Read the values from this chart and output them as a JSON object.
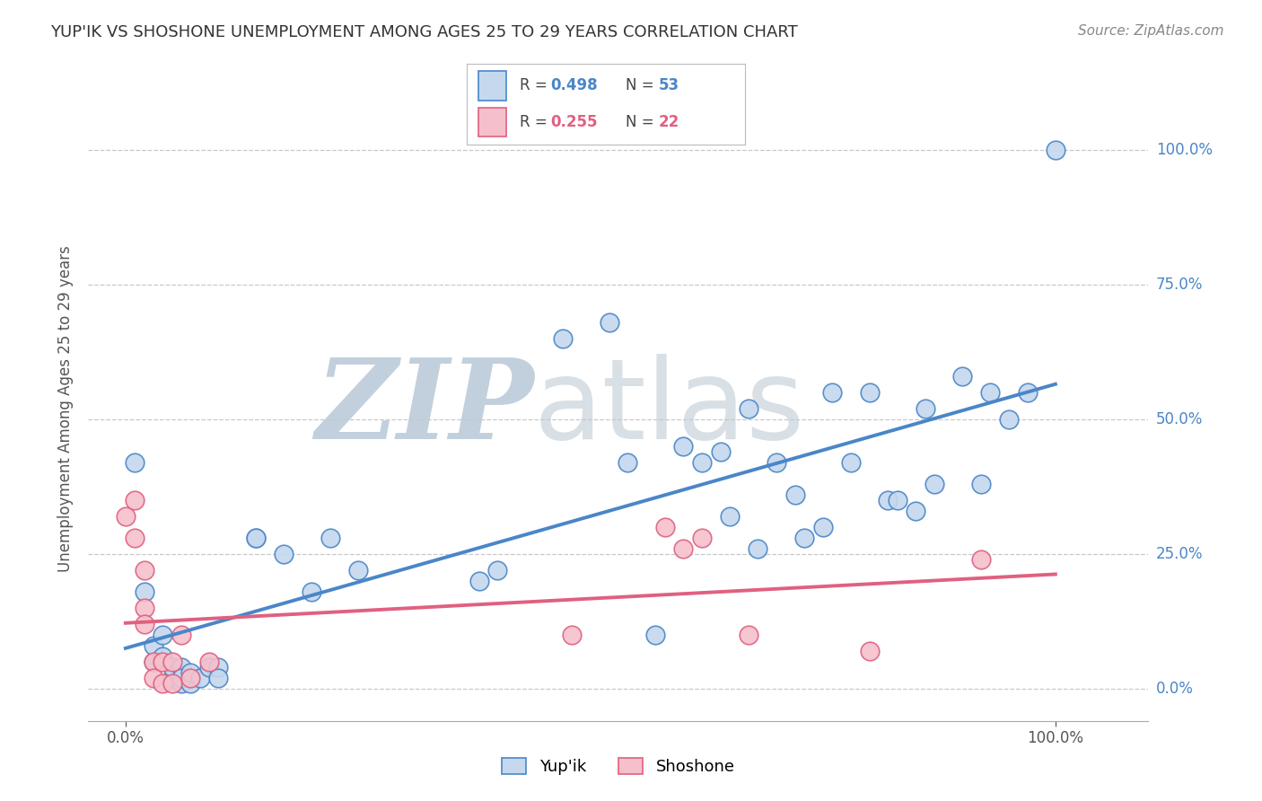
{
  "title": "YUP'IK VS SHOSHONE UNEMPLOYMENT AMONG AGES 25 TO 29 YEARS CORRELATION CHART",
  "source": "Source: ZipAtlas.com",
  "ylabel": "Unemployment Among Ages 25 to 29 years",
  "watermark_zip": "ZIP",
  "watermark_atlas": "atlas",
  "yupik_scatter": [
    [
      0.01,
      0.42
    ],
    [
      0.02,
      0.18
    ],
    [
      0.03,
      0.05
    ],
    [
      0.03,
      0.08
    ],
    [
      0.04,
      0.1
    ],
    [
      0.04,
      0.06
    ],
    [
      0.05,
      0.02
    ],
    [
      0.05,
      0.04
    ],
    [
      0.06,
      0.01
    ],
    [
      0.06,
      0.04
    ],
    [
      0.06,
      0.02
    ],
    [
      0.07,
      0.01
    ],
    [
      0.07,
      0.03
    ],
    [
      0.08,
      0.02
    ],
    [
      0.09,
      0.04
    ],
    [
      0.1,
      0.04
    ],
    [
      0.1,
      0.02
    ],
    [
      0.14,
      0.28
    ],
    [
      0.14,
      0.28
    ],
    [
      0.17,
      0.25
    ],
    [
      0.2,
      0.18
    ],
    [
      0.22,
      0.28
    ],
    [
      0.25,
      0.22
    ],
    [
      0.38,
      0.2
    ],
    [
      0.4,
      0.22
    ],
    [
      0.47,
      0.65
    ],
    [
      0.52,
      0.68
    ],
    [
      0.54,
      0.42
    ],
    [
      0.57,
      0.1
    ],
    [
      0.6,
      0.45
    ],
    [
      0.62,
      0.42
    ],
    [
      0.64,
      0.44
    ],
    [
      0.65,
      0.32
    ],
    [
      0.67,
      0.52
    ],
    [
      0.68,
      0.26
    ],
    [
      0.7,
      0.42
    ],
    [
      0.72,
      0.36
    ],
    [
      0.73,
      0.28
    ],
    [
      0.75,
      0.3
    ],
    [
      0.76,
      0.55
    ],
    [
      0.78,
      0.42
    ],
    [
      0.8,
      0.55
    ],
    [
      0.82,
      0.35
    ],
    [
      0.83,
      0.35
    ],
    [
      0.85,
      0.33
    ],
    [
      0.86,
      0.52
    ],
    [
      0.87,
      0.38
    ],
    [
      0.9,
      0.58
    ],
    [
      0.92,
      0.38
    ],
    [
      0.93,
      0.55
    ],
    [
      0.95,
      0.5
    ],
    [
      0.97,
      0.55
    ],
    [
      1.0,
      1.0
    ]
  ],
  "shoshone_scatter": [
    [
      0.0,
      0.32
    ],
    [
      0.01,
      0.35
    ],
    [
      0.01,
      0.28
    ],
    [
      0.02,
      0.15
    ],
    [
      0.02,
      0.22
    ],
    [
      0.02,
      0.12
    ],
    [
      0.03,
      0.05
    ],
    [
      0.03,
      0.02
    ],
    [
      0.04,
      0.01
    ],
    [
      0.04,
      0.05
    ],
    [
      0.05,
      0.01
    ],
    [
      0.05,
      0.05
    ],
    [
      0.06,
      0.1
    ],
    [
      0.07,
      0.02
    ],
    [
      0.09,
      0.05
    ],
    [
      0.48,
      0.1
    ],
    [
      0.58,
      0.3
    ],
    [
      0.6,
      0.26
    ],
    [
      0.62,
      0.28
    ],
    [
      0.67,
      0.1
    ],
    [
      0.8,
      0.07
    ],
    [
      0.92,
      0.24
    ]
  ],
  "yupik_line_color": "#4a86c8",
  "shoshone_line_color": "#e06080",
  "yupik_point_color": "#c5d8ee",
  "shoshone_point_color": "#f5c0cc",
  "background_color": "#ffffff",
  "grid_color": "#c8c8c8",
  "title_color": "#333333",
  "source_color": "#888888",
  "ytick_labels": [
    "0.0%",
    "25.0%",
    "50.0%",
    "75.0%",
    "100.0%"
  ],
  "ytick_values": [
    0.0,
    0.25,
    0.5,
    0.75,
    1.0
  ],
  "xtick_labels": [
    "0.0%",
    "100.0%"
  ],
  "xtick_values": [
    0.0,
    1.0
  ],
  "xlim": [
    -0.04,
    1.1
  ],
  "ylim": [
    -0.06,
    1.1
  ],
  "yupik_R": "0.498",
  "yupik_N": "53",
  "shoshone_R": "0.255",
  "shoshone_N": "22",
  "legend_label_yupik": "Yup'ik",
  "legend_label_shoshone": "Shoshone"
}
